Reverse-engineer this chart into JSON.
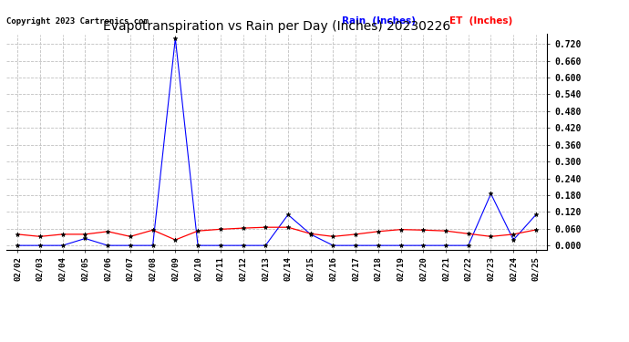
{
  "title": "Evapotranspiration vs Rain per Day (Inches) 20230226",
  "copyright": "Copyright 2023 Cartronics.com",
  "legend_rain": "Rain  (Inches)",
  "legend_et": "ET  (Inches)",
  "x_labels": [
    "02/02",
    "02/03",
    "02/04",
    "02/05",
    "02/06",
    "02/07",
    "02/08",
    "02/09",
    "02/10",
    "02/11",
    "02/12",
    "02/13",
    "02/14",
    "02/15",
    "02/16",
    "02/17",
    "02/18",
    "02/19",
    "02/20",
    "02/21",
    "02/22",
    "02/23",
    "02/24",
    "02/25"
  ],
  "rain_values": [
    0.0,
    0.0,
    0.0,
    0.025,
    0.0,
    0.0,
    0.0,
    0.74,
    0.0,
    0.0,
    0.0,
    0.0,
    0.11,
    0.04,
    0.0,
    0.0,
    0.0,
    0.0,
    0.0,
    0.0,
    0.0,
    0.185,
    0.02,
    0.11
  ],
  "et_values": [
    0.04,
    0.032,
    0.04,
    0.04,
    0.05,
    0.032,
    0.055,
    0.02,
    0.052,
    0.058,
    0.062,
    0.065,
    0.065,
    0.042,
    0.032,
    0.04,
    0.05,
    0.057,
    0.055,
    0.052,
    0.042,
    0.032,
    0.04,
    0.056
  ],
  "rain_color": "#0000ff",
  "et_color": "#ff0000",
  "background_color": "#ffffff",
  "grid_color": "#c0c0c0",
  "ylim_min": -0.015,
  "ylim_max": 0.755,
  "yticks": [
    0.0,
    0.06,
    0.12,
    0.18,
    0.24,
    0.3,
    0.36,
    0.42,
    0.48,
    0.54,
    0.6,
    0.66,
    0.72
  ]
}
